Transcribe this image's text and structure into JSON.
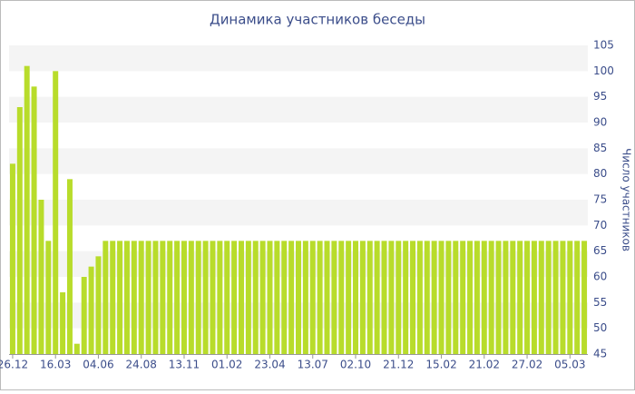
{
  "chart_data": {
    "type": "bar",
    "title": "Динамика участников беседы",
    "y_label": "Число участников",
    "categories": [
      "26.12",
      null,
      null,
      null,
      null,
      null,
      "16.03",
      null,
      null,
      null,
      null,
      null,
      "04.06",
      null,
      null,
      null,
      null,
      null,
      "24.08",
      null,
      null,
      null,
      null,
      null,
      "13.11",
      null,
      null,
      null,
      null,
      null,
      "01.02",
      null,
      null,
      null,
      null,
      null,
      "23.04",
      null,
      null,
      null,
      null,
      null,
      "13.07",
      null,
      null,
      null,
      null,
      null,
      "02.10",
      null,
      null,
      null,
      null,
      null,
      "21.12",
      null,
      null,
      null,
      null,
      null,
      "15.02",
      null,
      null,
      null,
      null,
      null,
      "21.02",
      null,
      null,
      null,
      null,
      null,
      "27.02",
      null,
      null,
      null,
      null,
      null,
      "05.03",
      null,
      null
    ],
    "values": [
      82,
      93,
      101,
      97,
      75,
      67,
      100,
      57,
      79,
      47,
      60,
      62,
      64,
      67,
      67,
      67,
      67,
      67,
      67,
      67,
      67,
      67,
      67,
      67,
      67,
      67,
      67,
      67,
      67,
      67,
      67,
      67,
      67,
      67,
      67,
      67,
      67,
      67,
      67,
      67,
      67,
      67,
      67,
      67,
      67,
      67,
      67,
      67,
      67,
      67,
      67,
      67,
      67,
      67,
      67,
      67,
      67,
      67,
      67,
      67,
      67,
      67,
      67,
      67,
      67,
      67,
      67,
      67,
      67,
      67,
      67,
      67,
      67,
      67,
      67,
      67,
      67,
      67,
      67,
      67,
      67
    ],
    "color": "#b8dc2b",
    "ylim": [
      45,
      105
    ],
    "yticks": [
      45,
      50,
      55,
      60,
      65,
      70,
      75,
      80,
      85,
      90,
      95,
      100,
      105
    ],
    "grid": true,
    "y_axis_side": "right"
  }
}
